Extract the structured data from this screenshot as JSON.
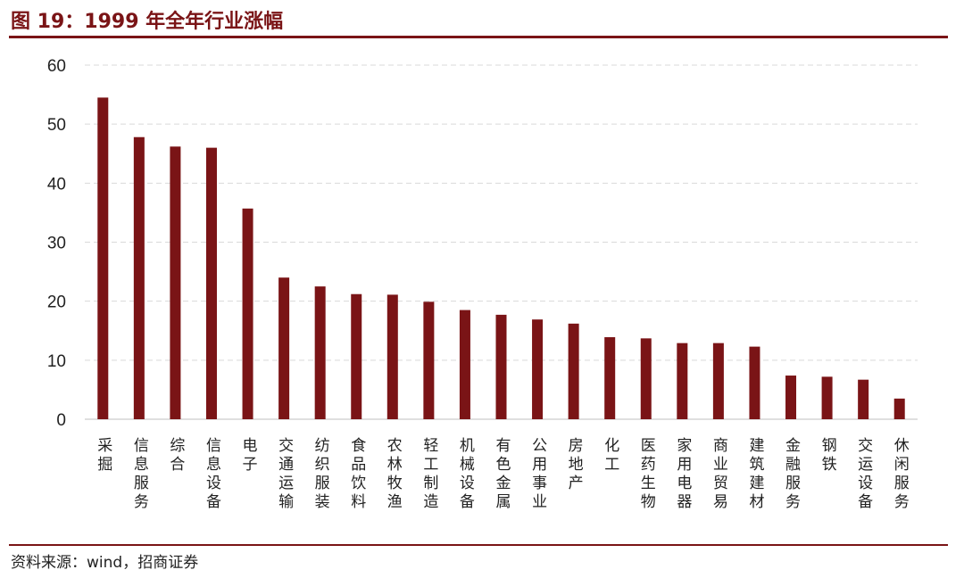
{
  "header": {
    "title": "图 19：1999 年全年行业涨幅"
  },
  "footer": {
    "source": "资料来源：wind，招商证券"
  },
  "colors": {
    "accent": "#7a1416",
    "bar": "#7a1416",
    "grid": "#d9d9d9"
  },
  "chart_data": {
    "type": "bar",
    "title": "",
    "xlabel": "",
    "ylabel": "",
    "ylim": [
      0,
      60
    ],
    "yticks": [
      0,
      10,
      20,
      30,
      40,
      50,
      60
    ],
    "grid": true,
    "categories": [
      "采掘",
      "信息服务",
      "综合",
      "信息设备",
      "电子",
      "交通运输",
      "纺织服装",
      "食品饮料",
      "农林牧渔",
      "轻工制造",
      "机械设备",
      "有色金属",
      "公用事业",
      "房地产",
      "化工",
      "医药生物",
      "家用电器",
      "商业贸易",
      "建筑建材",
      "金融服务",
      "钢铁",
      "交运设备",
      "休闲服务"
    ],
    "values": [
      54.5,
      47.8,
      46.2,
      46.0,
      35.7,
      24.0,
      22.5,
      21.2,
      21.1,
      19.9,
      18.5,
      17.7,
      16.9,
      16.2,
      13.9,
      13.7,
      12.9,
      12.9,
      12.3,
      7.4,
      7.2,
      6.7,
      3.5
    ]
  }
}
